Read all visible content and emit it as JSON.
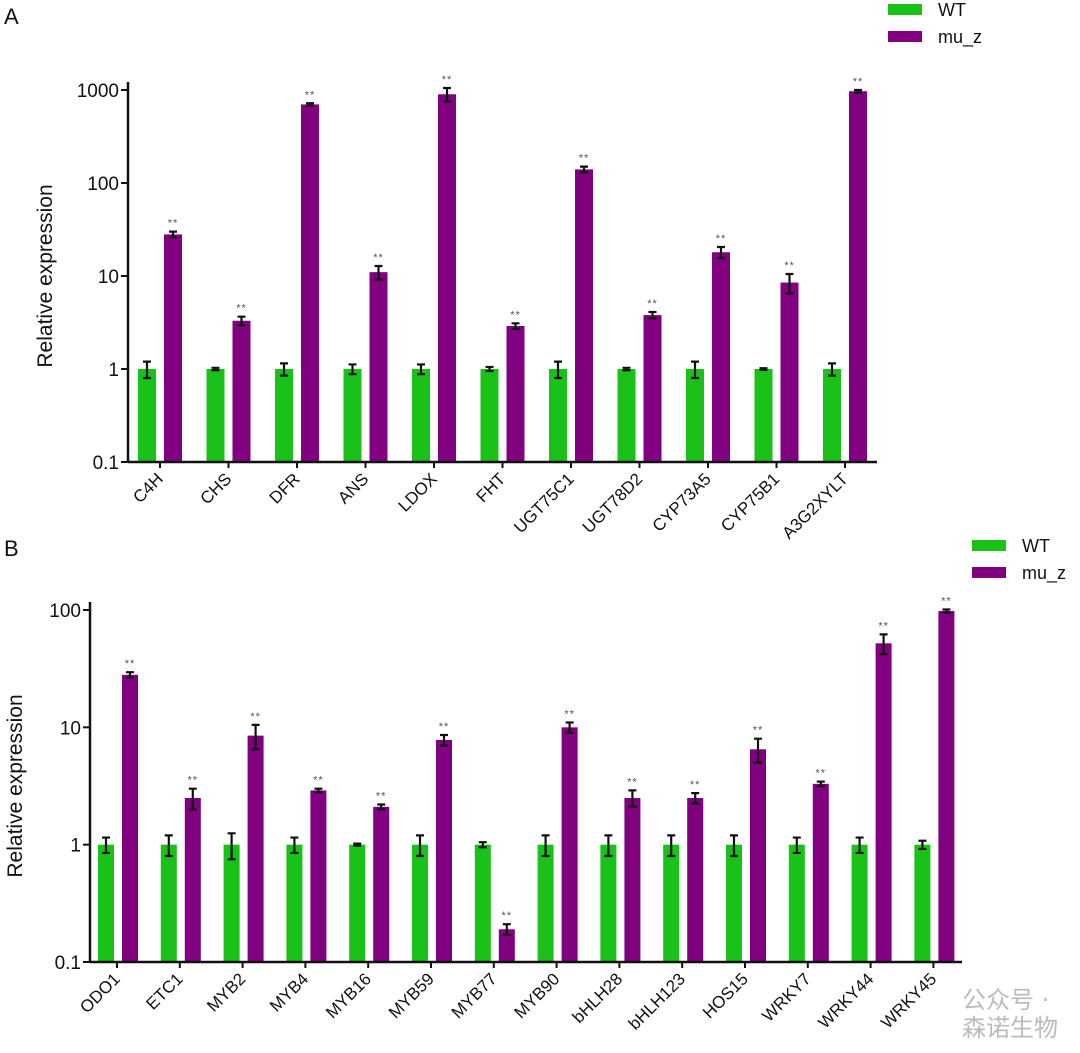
{
  "colors": {
    "WT": "#19c119",
    "mu_z": "#800080"
  },
  "watermark": "公众号 · 森诺生物",
  "chart_data": [
    {
      "panel": "A",
      "type": "bar",
      "yscale": "log",
      "ylim": [
        0.1,
        1000
      ],
      "yticks": [
        "0.1",
        "1",
        "10",
        "100",
        "1000"
      ],
      "ylabel": "Relative expression",
      "legend": "top-right",
      "categories": [
        "C4H",
        "CHS",
        "DFR",
        "ANS",
        "LDOX",
        "FHT",
        "UGT75C1",
        "UGT78D2",
        "CYP73A5",
        "CYP75B1",
        "A3G2XYLT"
      ],
      "series": [
        {
          "name": "WT",
          "values": [
            1,
            1,
            1,
            1,
            1,
            1,
            1,
            1,
            1,
            1,
            1
          ],
          "errors": [
            0.2,
            0.03,
            0.15,
            0.12,
            0.12,
            0.05,
            0.2,
            0.03,
            0.2,
            0.02,
            0.15
          ]
        },
        {
          "name": "mu_z",
          "values": [
            28,
            3.3,
            700,
            11,
            900,
            2.9,
            140,
            3.8,
            18,
            8.5,
            970
          ],
          "errors": [
            2,
            0.35,
            20,
            1.8,
            150,
            0.2,
            10,
            0.3,
            2.5,
            2,
            30
          ],
          "significance": [
            "**",
            "**",
            "**",
            "**",
            "**",
            "**",
            "**",
            "**",
            "**",
            "**",
            "**"
          ]
        }
      ]
    },
    {
      "panel": "B",
      "type": "bar",
      "yscale": "log",
      "ylim": [
        0.1,
        100
      ],
      "yticks": [
        "0.1",
        "1",
        "10",
        "100"
      ],
      "ylabel": "Relative expression",
      "legend": "top-right",
      "categories": [
        "ODO1",
        "ETC1",
        "MYB2",
        "MYB4",
        "MYB16",
        "MYB59",
        "MYB77",
        "MYB90",
        "bHLH28",
        "bHLH123",
        "HOS15",
        "WRKY7",
        "WRKY44",
        "WRKY45"
      ],
      "series": [
        {
          "name": "WT",
          "values": [
            1,
            1,
            1,
            1,
            1,
            1,
            1,
            1,
            1,
            1,
            1,
            1,
            1,
            1
          ],
          "errors": [
            0.15,
            0.2,
            0.25,
            0.15,
            0.02,
            0.2,
            0.05,
            0.2,
            0.2,
            0.2,
            0.2,
            0.15,
            0.15,
            0.08
          ]
        },
        {
          "name": "mu_z",
          "values": [
            28,
            2.5,
            8.5,
            2.9,
            2.1,
            7.8,
            0.19,
            10,
            2.5,
            2.5,
            6.5,
            3.3,
            52,
            98
          ],
          "errors": [
            1.5,
            0.5,
            2,
            0.1,
            0.1,
            0.8,
            0.02,
            1,
            0.4,
            0.25,
            1.5,
            0.15,
            10,
            3
          ],
          "significance": [
            "**",
            "**",
            "**",
            "**",
            "**",
            "**",
            "**",
            "**",
            "**",
            "**",
            "**",
            "**",
            "**",
            "**"
          ]
        }
      ]
    }
  ]
}
